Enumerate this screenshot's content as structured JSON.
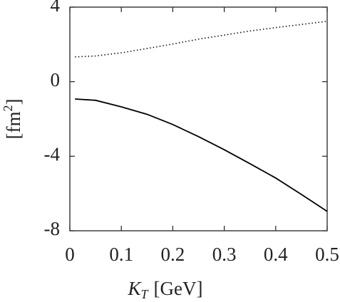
{
  "chart_data": {
    "type": "line",
    "xlabel": {
      "symbol": "K",
      "subscript": "T",
      "unit": "[GeV]"
    },
    "ylabel": {
      "open": "[fm",
      "superscript": "2",
      "close": "]"
    },
    "x": [
      0.01,
      0.05,
      0.1,
      0.15,
      0.2,
      0.25,
      0.3,
      0.35,
      0.4,
      0.45,
      0.5
    ],
    "series": [
      {
        "color": "#000000",
        "style": "dotted",
        "values": [
          1.33,
          1.38,
          1.55,
          1.78,
          2.02,
          2.28,
          2.5,
          2.72,
          2.9,
          3.07,
          3.24
        ]
      },
      {
        "color": "#000000",
        "style": "solid",
        "values": [
          -0.93,
          -1.0,
          -1.35,
          -1.75,
          -2.3,
          -2.95,
          -3.65,
          -4.4,
          -5.17,
          -6.05,
          -6.96
        ]
      }
    ],
    "xlim": [
      0,
      0.5
    ],
    "xticks": [
      0,
      0.1,
      0.2,
      0.3,
      0.4,
      0.5
    ],
    "ylim": [
      -8,
      4
    ],
    "yticks": [
      -8,
      -4,
      0,
      4
    ]
  }
}
